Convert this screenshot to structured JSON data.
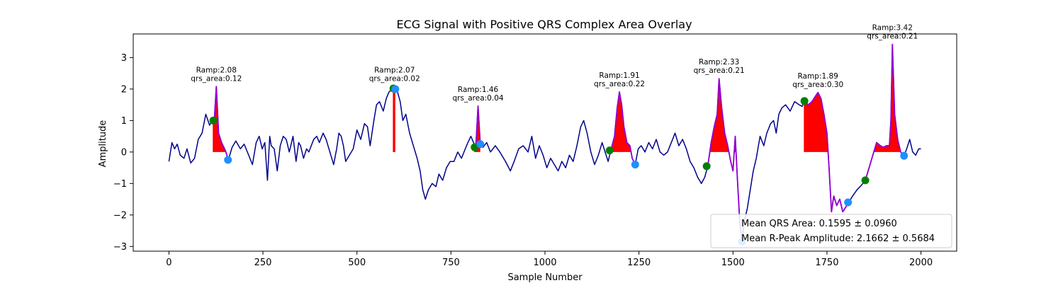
{
  "chart_data": {
    "type": "line",
    "title": "ECG Signal with Positive QRS Complex Area Overlay",
    "xlabel": "Sample Number",
    "ylabel": "Amplitude",
    "xlim": [
      -95,
      2095
    ],
    "ylim": [
      -3.15,
      3.75
    ],
    "xticks": [
      0,
      250,
      500,
      750,
      1000,
      1250,
      1500,
      1750,
      2000
    ],
    "yticks": [
      -3,
      -2,
      -1,
      0,
      1,
      2,
      3
    ],
    "grid": false,
    "colors": {
      "signal": "#00008b",
      "qrs_segment": "#9400d3",
      "qrs_fill": "#ff0000",
      "onset_marker": "#008000",
      "offset_marker": "#1e90ff"
    },
    "signal_anchor_points": [
      [
        0,
        -0.3
      ],
      [
        8,
        0.3
      ],
      [
        15,
        0.1
      ],
      [
        22,
        0.25
      ],
      [
        30,
        -0.1
      ],
      [
        40,
        -0.2
      ],
      [
        48,
        0.1
      ],
      [
        58,
        -0.35
      ],
      [
        68,
        -0.2
      ],
      [
        78,
        0.4
      ],
      [
        88,
        0.6
      ],
      [
        98,
        1.2
      ],
      [
        108,
        0.85
      ],
      [
        115,
        1.0
      ],
      [
        120,
        0.9
      ],
      [
        126,
        2.08
      ],
      [
        132,
        0.6
      ],
      [
        140,
        0.3
      ],
      [
        150,
        0.05
      ],
      [
        158,
        -0.25
      ],
      [
        168,
        0.15
      ],
      [
        178,
        0.35
      ],
      [
        190,
        0.1
      ],
      [
        200,
        0.25
      ],
      [
        212,
        -0.1
      ],
      [
        222,
        -0.4
      ],
      [
        232,
        0.3
      ],
      [
        240,
        0.5
      ],
      [
        248,
        0.1
      ],
      [
        255,
        0.3
      ],
      [
        262,
        -0.9
      ],
      [
        268,
        0.5
      ],
      [
        272,
        0.2
      ],
      [
        280,
        0.1
      ],
      [
        288,
        -0.6
      ],
      [
        296,
        0.2
      ],
      [
        304,
        0.5
      ],
      [
        312,
        0.4
      ],
      [
        320,
        0.0
      ],
      [
        330,
        0.5
      ],
      [
        338,
        -0.3
      ],
      [
        345,
        0.3
      ],
      [
        350,
        0.2
      ],
      [
        358,
        -0.2
      ],
      [
        366,
        0.1
      ],
      [
        372,
        0.0
      ],
      [
        385,
        0.4
      ],
      [
        393,
        0.5
      ],
      [
        400,
        0.3
      ],
      [
        410,
        0.6
      ],
      [
        418,
        0.4
      ],
      [
        428,
        0.0
      ],
      [
        438,
        -0.4
      ],
      [
        446,
        0.1
      ],
      [
        452,
        0.6
      ],
      [
        458,
        0.5
      ],
      [
        464,
        0.2
      ],
      [
        470,
        -0.3
      ],
      [
        480,
        -0.1
      ],
      [
        490,
        0.1
      ],
      [
        500,
        0.7
      ],
      [
        510,
        0.4
      ],
      [
        520,
        0.9
      ],
      [
        528,
        0.8
      ],
      [
        535,
        0.2
      ],
      [
        545,
        1.0
      ],
      [
        552,
        1.5
      ],
      [
        560,
        1.6
      ],
      [
        570,
        1.3
      ],
      [
        578,
        1.7
      ],
      [
        585,
        1.9
      ],
      [
        593,
        2.0
      ],
      [
        600,
        2.07
      ],
      [
        608,
        1.9
      ],
      [
        615,
        1.6
      ],
      [
        622,
        1.0
      ],
      [
        630,
        1.2
      ],
      [
        640,
        0.6
      ],
      [
        650,
        0.2
      ],
      [
        660,
        -0.2
      ],
      [
        668,
        -0.6
      ],
      [
        675,
        -1.2
      ],
      [
        682,
        -1.5
      ],
      [
        690,
        -1.2
      ],
      [
        700,
        -1.0
      ],
      [
        710,
        -1.1
      ],
      [
        718,
        -0.7
      ],
      [
        728,
        -0.9
      ],
      [
        738,
        -0.5
      ],
      [
        748,
        -0.3
      ],
      [
        758,
        -0.3
      ],
      [
        768,
        0.0
      ],
      [
        778,
        -0.2
      ],
      [
        788,
        0.1
      ],
      [
        795,
        0.3
      ],
      [
        803,
        0.5
      ],
      [
        810,
        0.3
      ],
      [
        816,
        0.15
      ],
      [
        822,
        1.46
      ],
      [
        828,
        0.25
      ],
      [
        835,
        0.15
      ],
      [
        845,
        0.3
      ],
      [
        855,
        0.0
      ],
      [
        868,
        0.2
      ],
      [
        880,
        0.0
      ],
      [
        895,
        -0.3
      ],
      [
        908,
        -0.6
      ],
      [
        918,
        -0.3
      ],
      [
        930,
        0.1
      ],
      [
        942,
        0.2
      ],
      [
        955,
        0.0
      ],
      [
        965,
        0.5
      ],
      [
        975,
        -0.2
      ],
      [
        985,
        0.2
      ],
      [
        995,
        -0.1
      ],
      [
        1005,
        -0.5
      ],
      [
        1015,
        -0.2
      ],
      [
        1025,
        -0.4
      ],
      [
        1035,
        -0.6
      ],
      [
        1045,
        -0.3
      ],
      [
        1055,
        -0.5
      ],
      [
        1065,
        -0.1
      ],
      [
        1075,
        -0.3
      ],
      [
        1085,
        0.2
      ],
      [
        1095,
        0.8
      ],
      [
        1103,
        1.0
      ],
      [
        1112,
        0.6
      ],
      [
        1122,
        0.0
      ],
      [
        1132,
        -0.4
      ],
      [
        1142,
        -0.1
      ],
      [
        1152,
        0.3
      ],
      [
        1160,
        0.0
      ],
      [
        1168,
        -0.3
      ],
      [
        1175,
        0.05
      ],
      [
        1185,
        0.5
      ],
      [
        1192,
        1.4
      ],
      [
        1198,
        1.91
      ],
      [
        1204,
        1.5
      ],
      [
        1210,
        0.8
      ],
      [
        1218,
        0.3
      ],
      [
        1226,
        0.2
      ],
      [
        1232,
        -0.2
      ],
      [
        1240,
        -0.4
      ],
      [
        1248,
        0.1
      ],
      [
        1256,
        0.2
      ],
      [
        1266,
        0.0
      ],
      [
        1276,
        0.3
      ],
      [
        1286,
        0.1
      ],
      [
        1296,
        0.4
      ],
      [
        1306,
        0.0
      ],
      [
        1316,
        -0.1
      ],
      [
        1326,
        0.0
      ],
      [
        1336,
        0.3
      ],
      [
        1346,
        0.6
      ],
      [
        1356,
        0.2
      ],
      [
        1366,
        0.4
      ],
      [
        1376,
        0.1
      ],
      [
        1386,
        -0.3
      ],
      [
        1396,
        -0.5
      ],
      [
        1406,
        -0.8
      ],
      [
        1416,
        -1.0
      ],
      [
        1425,
        -0.8
      ],
      [
        1433,
        -0.45
      ],
      [
        1442,
        0.3
      ],
      [
        1450,
        0.8
      ],
      [
        1458,
        1.2
      ],
      [
        1463,
        2.33
      ],
      [
        1470,
        1.4
      ],
      [
        1478,
        0.6
      ],
      [
        1486,
        0.2
      ],
      [
        1494,
        -0.3
      ],
      [
        1500,
        -0.6
      ],
      [
        1506,
        0.5
      ],
      [
        1512,
        -0.9
      ],
      [
        1518,
        -2.2
      ],
      [
        1524,
        -2.85
      ],
      [
        1530,
        -2.2
      ],
      [
        1538,
        -1.8
      ],
      [
        1546,
        -1.2
      ],
      [
        1554,
        -0.6
      ],
      [
        1562,
        -0.2
      ],
      [
        1572,
        0.5
      ],
      [
        1582,
        0.2
      ],
      [
        1590,
        0.6
      ],
      [
        1600,
        0.9
      ],
      [
        1608,
        1.0
      ],
      [
        1615,
        0.6
      ],
      [
        1622,
        1.2
      ],
      [
        1630,
        1.4
      ],
      [
        1640,
        1.5
      ],
      [
        1652,
        1.3
      ],
      [
        1664,
        1.6
      ],
      [
        1676,
        1.5
      ],
      [
        1684,
        1.45
      ],
      [
        1690,
        1.62
      ],
      [
        1700,
        1.5
      ],
      [
        1710,
        1.6
      ],
      [
        1718,
        1.75
      ],
      [
        1726,
        1.89
      ],
      [
        1734,
        1.7
      ],
      [
        1742,
        1.2
      ],
      [
        1750,
        0.6
      ],
      [
        1756,
        -0.6
      ],
      [
        1762,
        -1.9
      ],
      [
        1768,
        -1.4
      ],
      [
        1776,
        -1.7
      ],
      [
        1784,
        -1.5
      ],
      [
        1792,
        -1.9
      ],
      [
        1800,
        -1.75
      ],
      [
        1808,
        -1.6
      ],
      [
        1818,
        -1.4
      ],
      [
        1830,
        -1.2
      ],
      [
        1842,
        -1.05
      ],
      [
        1852,
        -0.9
      ],
      [
        1862,
        -0.5
      ],
      [
        1872,
        -0.1
      ],
      [
        1882,
        0.3
      ],
      [
        1892,
        0.2
      ],
      [
        1900,
        0.15
      ],
      [
        1908,
        0.2
      ],
      [
        1916,
        0.2
      ],
      [
        1920,
        1.0
      ],
      [
        1924,
        3.42
      ],
      [
        1930,
        1.2
      ],
      [
        1938,
        0.4
      ],
      [
        1946,
        0.0
      ],
      [
        1955,
        -0.12
      ],
      [
        1962,
        0.1
      ],
      [
        1970,
        0.4
      ],
      [
        1978,
        0.0
      ],
      [
        1986,
        -0.1
      ],
      [
        1994,
        0.1
      ],
      [
        2000,
        0.1
      ]
    ],
    "qrs_complexes": [
      {
        "onset": [
          118,
          1.0
        ],
        "peak": [
          126,
          2.08
        ],
        "offset": [
          157,
          -0.25
        ],
        "label_ramp": "Ramp:2.08",
        "label_area": "qrs_area:0.12"
      },
      {
        "onset": [
          597,
          2.02
        ],
        "peak": [
          600,
          2.07
        ],
        "offset": [
          602,
          2.0
        ],
        "label_ramp": "Ramp:2.07",
        "label_area": "qrs_area:0.02"
      },
      {
        "onset": [
          813,
          0.15
        ],
        "peak": [
          822,
          1.46
        ],
        "offset": [
          828,
          0.25
        ],
        "label_ramp": "Ramp:1.46",
        "label_area": "qrs_area:0.04"
      },
      {
        "onset": [
          1172,
          0.05
        ],
        "peak": [
          1198,
          1.91
        ],
        "offset": [
          1240,
          -0.4
        ],
        "label_ramp": "Ramp:1.91",
        "label_area": "qrs_area:0.22"
      },
      {
        "onset": [
          1430,
          -0.45
        ],
        "peak": [
          1463,
          2.33
        ],
        "offset": [
          1524,
          -2.85
        ],
        "label_ramp": "Ramp:2.33",
        "label_area": "qrs_area:0.21"
      },
      {
        "onset": [
          1690,
          1.62
        ],
        "peak": [
          1726,
          1.89
        ],
        "offset": [
          1806,
          -1.6
        ],
        "label_ramp": "Ramp:1.89",
        "label_area": "qrs_area:0.30"
      },
      {
        "onset": [
          1852,
          -0.9
        ],
        "peak": [
          1924,
          3.42
        ],
        "offset": [
          1955,
          -0.12
        ],
        "label_ramp": "Ramp:3.42",
        "label_area": "qrs_area:0.21"
      }
    ],
    "legend": {
      "location": "lower right",
      "entries": [
        "Mean QRS Area: 0.1595 ± 0.0960",
        "Mean R-Peak Amplitude: 2.1662 ± 0.5684"
      ]
    }
  }
}
